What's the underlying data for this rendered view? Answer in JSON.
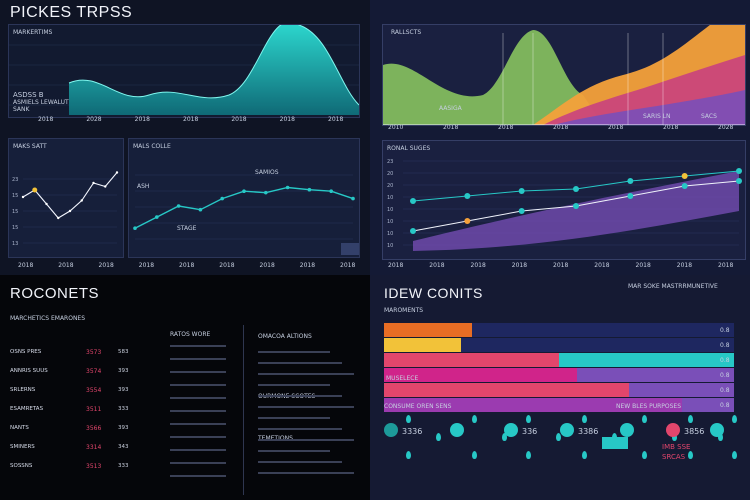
{
  "panels": {
    "q1": {
      "title": "PICKES TRPSS",
      "sub_label": "MARKERTIMS",
      "legend_a": "ASDSS B",
      "legend_b": "ASMIELS LEWALUT",
      "legend_c": "SANK",
      "ticks": [
        "2018",
        "2028",
        "2018",
        "2018",
        "2018",
        "2018",
        "2018"
      ]
    },
    "q1_lower_left": {
      "title": "MAKS SATT",
      "ticks": [
        "2018",
        "2018",
        "2018"
      ],
      "y_ticks": [
        "23",
        "15",
        "15",
        "15",
        "13"
      ]
    },
    "q1_lower_right": {
      "title": "MALS COLLE",
      "callout_a": "ASH",
      "callout_b": "STAGE",
      "callout_c": "SAMIOS",
      "ticks": [
        "2018",
        "2018",
        "2018",
        "2018",
        "2018",
        "2018"
      ]
    },
    "q2": {
      "title": "RALLSCTS",
      "label_a": "AASIGA",
      "label_b": "SARIS LN",
      "label_c": "SACS",
      "ticks": [
        "2010",
        "2018",
        "2018",
        "2018",
        "2018",
        "2018",
        "2028"
      ]
    },
    "q2_lower": {
      "title": "RONAL SUGES",
      "ticks": [
        "2018",
        "2018",
        "2018",
        "2018",
        "2018",
        "2018",
        "2018",
        "2018",
        "2018"
      ],
      "y_ticks": [
        "23",
        "20",
        "20",
        "10",
        "10",
        "10",
        "10",
        "10"
      ]
    },
    "q3": {
      "title": "ROCONETS",
      "header": "MARCHETICS EMARONES",
      "col_b_header": "RATOS WORE",
      "col_c_header": "OMACOA ALTIONS",
      "col_c_header2": "OURMONE SCOTES",
      "col_c_header3": "TEMETIONS",
      "rows": [
        {
          "label": "OSNS PRES",
          "value": "3573",
          "n": "583"
        },
        {
          "label": "ANNRIS SUUS",
          "value": "3574",
          "n": "393"
        },
        {
          "label": "SRLERNS",
          "value": "3554",
          "n": "393"
        },
        {
          "label": "ESAMRETAS",
          "value": "3511",
          "n": "333"
        },
        {
          "label": "NANTS",
          "value": "3566",
          "n": "393"
        },
        {
          "label": "SMINERS",
          "value": "3314",
          "n": "343"
        },
        {
          "label": "SOSSNS",
          "value": "3513",
          "n": "333"
        }
      ]
    },
    "q4": {
      "title": "IDEW CONITS",
      "sub_title": "MAR SOKE MASTRRMUNETIVE",
      "legend_title": "MAROMENTS",
      "bar_label": "MUSELECE",
      "footer_a": "CONSUME OREN SENS",
      "footer_b": "NEW BLES PURPOSES",
      "pct_1": "3336",
      "pct_2": "336",
      "pct_3": "3386",
      "pct_4": "3856",
      "callout_1": "IMB SSE",
      "callout_2": "SRCAS",
      "bar_ticks": [
        "0.8",
        "0.8",
        "0.8",
        "0.8",
        "0.8",
        "0.8"
      ]
    }
  },
  "colors": {
    "teal": "#27c8c6",
    "orange": "#f4a13a",
    "purple": "#7a4fb8",
    "pink": "#e2466c",
    "magenta": "#d0248a",
    "yellow": "#f2c239",
    "green": "#8fce62"
  },
  "chart_data": [
    {
      "type": "area",
      "title": "PICKES TRPSS",
      "x": [
        "2018",
        "2028",
        "2018",
        "2018",
        "2018",
        "2018",
        "2018"
      ],
      "values": [
        18,
        22,
        40,
        45,
        48,
        72,
        30
      ]
    },
    {
      "type": "line",
      "title": "MAKS SATT",
      "values": [
        60,
        70,
        50,
        30,
        40,
        55,
        80,
        75,
        95
      ]
    },
    {
      "type": "line",
      "title": "MALS COLLE",
      "values": [
        20,
        35,
        50,
        45,
        60,
        70,
        68,
        75,
        72,
        70,
        60
      ]
    },
    {
      "type": "area",
      "title": "RALLSCTS",
      "series": [
        {
          "values": [
            20,
            30,
            55,
            40,
            60,
            80,
            90
          ]
        },
        {
          "values": [
            10,
            20,
            35,
            50,
            70,
            85,
            95
          ]
        },
        {
          "values": [
            5,
            10,
            20,
            30,
            40,
            55,
            65
          ]
        }
      ]
    },
    {
      "type": "line",
      "title": "RONAL SUGES",
      "series": [
        {
          "values": [
            50,
            55,
            60,
            62,
            70,
            75,
            80
          ]
        },
        {
          "values": [
            20,
            30,
            40,
            45,
            55,
            65,
            70
          ]
        }
      ]
    },
    {
      "type": "bar",
      "title": "IDEW CONITS",
      "categories": [
        "r1",
        "r2",
        "r3",
        "r4",
        "r5",
        "r6"
      ],
      "series": [
        {
          "name": "a",
          "values": [
            0.25,
            0.22,
            0.5,
            0.55,
            0.7,
            0.85
          ]
        },
        {
          "name": "b",
          "values": [
            0.7,
            0.7,
            0.48,
            0.42,
            0.25,
            0.1
          ]
        }
      ]
    }
  ]
}
